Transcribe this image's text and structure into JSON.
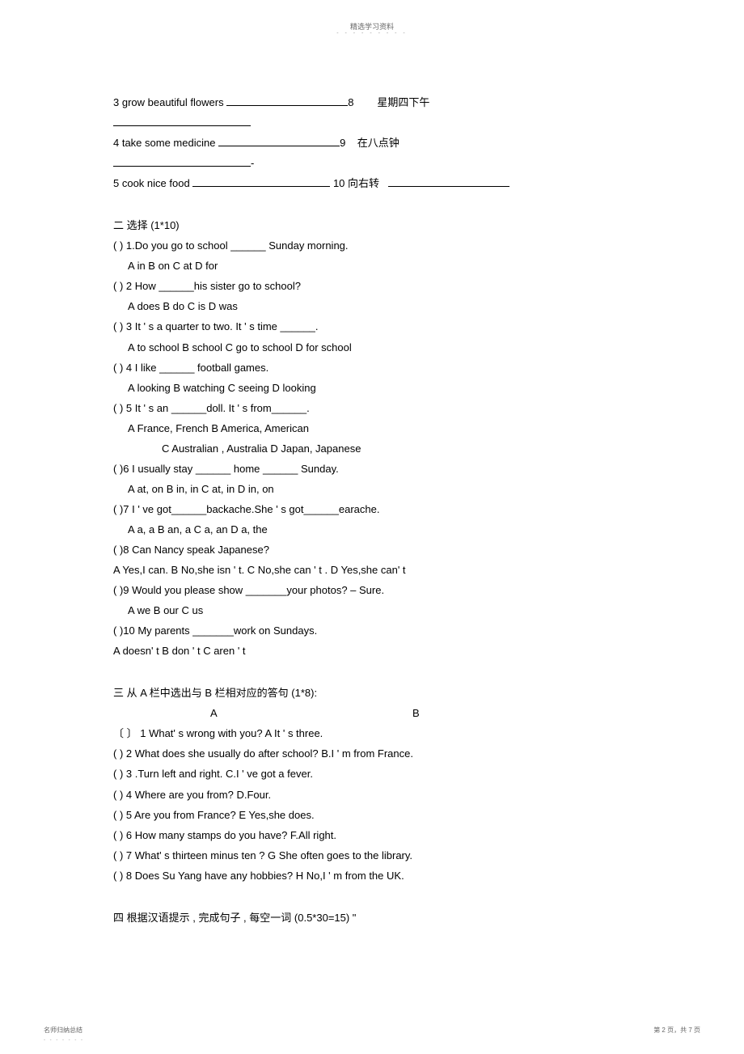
{
  "header": {
    "title": "精选学习资料",
    "dots": "- - - - - - - - -"
  },
  "section1": {
    "l3": "3 grow beautiful flowers",
    "l3r": "8",
    "l3rt": "星期四下午",
    "l4": "4 take some medicine",
    "l4r": "9",
    "l4rt": "在八点钟",
    "l4dash": "-",
    "l5": "5 cook nice  food",
    "l5r": "10 向右转"
  },
  "section2": {
    "title": "二  选择 (1*10)",
    "q1": "(      ) 1.Do you go to school  ______ Sunday morning.",
    "q1o": " A in      B on     C  at   D   for",
    "q2": "(      ) 2 How ______his sister go to school?",
    "q2o": " A does    B do     C is     D was",
    "q3": "(      ) 3 It        '   s a quarter to two. It          '   s time ______.",
    "q3o": " A to school   B school   C go to school   D   for school",
    "q4": "(      ) 4 I like   ______ football games.",
    "q4o": " A looking    B  watching   C seeing    D looking",
    "q5": "(      ) 5 It        '   s an ______doll. It      '   s from______.",
    "q5o": " A France, French    B America, American",
    "q5o2": "       C Australian , Australia   D Japan, Japanese",
    "q6": "(      )6 I usually stay ______ home ______ Sunday.",
    "q6o": " A at, on   B in, in    C at, in    D in, on",
    "q7": "(      )7 I       '   ve got______backache.She  '   s got______earache.",
    "q7o": " A a, a     B an, a    C a, an    D a, the",
    "q8": "(      )8 Can Nancy speak Japanese?",
    "q8o": "        A Yes,I can.     B No,she isn          '   t.  C No,she can    '   t .   D Yes,she can'   t",
    "q9": "(      )9 Would you please show _______your photos?            –  Sure.",
    "q9o": "  A we        B our   C us",
    "q10": "(      )10 My parents _______work on Sundays.",
    "q10o": "        A doesn'   t      B don       '   t   C aren    '   t"
  },
  "section3": {
    "title": "三  从   A 栏中选出与 B 栏相对应的答句    (1*8):",
    "headerA": "A",
    "headerB": "B",
    "m1": " 〔          〕 1  What'  s wrong with you?             A It                    '   s three.",
    "m2": "  (      ) 2 What does she usually do after school?    B.I                     '   m from France.",
    "m3": "   (     ) 3 .Turn left and right.                 C.I                                        '   ve got a fever.",
    "m4": " (    )   4 Where are you from?              D.Four.",
    "m5": " (    )   5 Are you from France?             E Yes,she does.",
    "m6": " (    )   6 How many stamps do you have?       F.All right.",
    "m7": "  (    )   7        What'  s  thirteen     minus  ten   ?          G          She often    goes  to   the library.",
    "m8": "  (          ) 8 Does Su Yang have any hobbies?      H No,I            '   m from the UK."
  },
  "section4": {
    "title": "四  根据汉语提示 , 完成句子 , 每空一词 (0.5*30=15)  \""
  },
  "footer": {
    "left": "名师归纳总结",
    "dotsLeft": "- - - - - - -",
    "right": "第 2 页，共 7 页"
  },
  "colors": {
    "text": "#000000",
    "headerText": "#666666",
    "dots": "#999999",
    "background": "#ffffff"
  },
  "fontsize": {
    "body": 13,
    "header": 9,
    "footer": 8
  }
}
